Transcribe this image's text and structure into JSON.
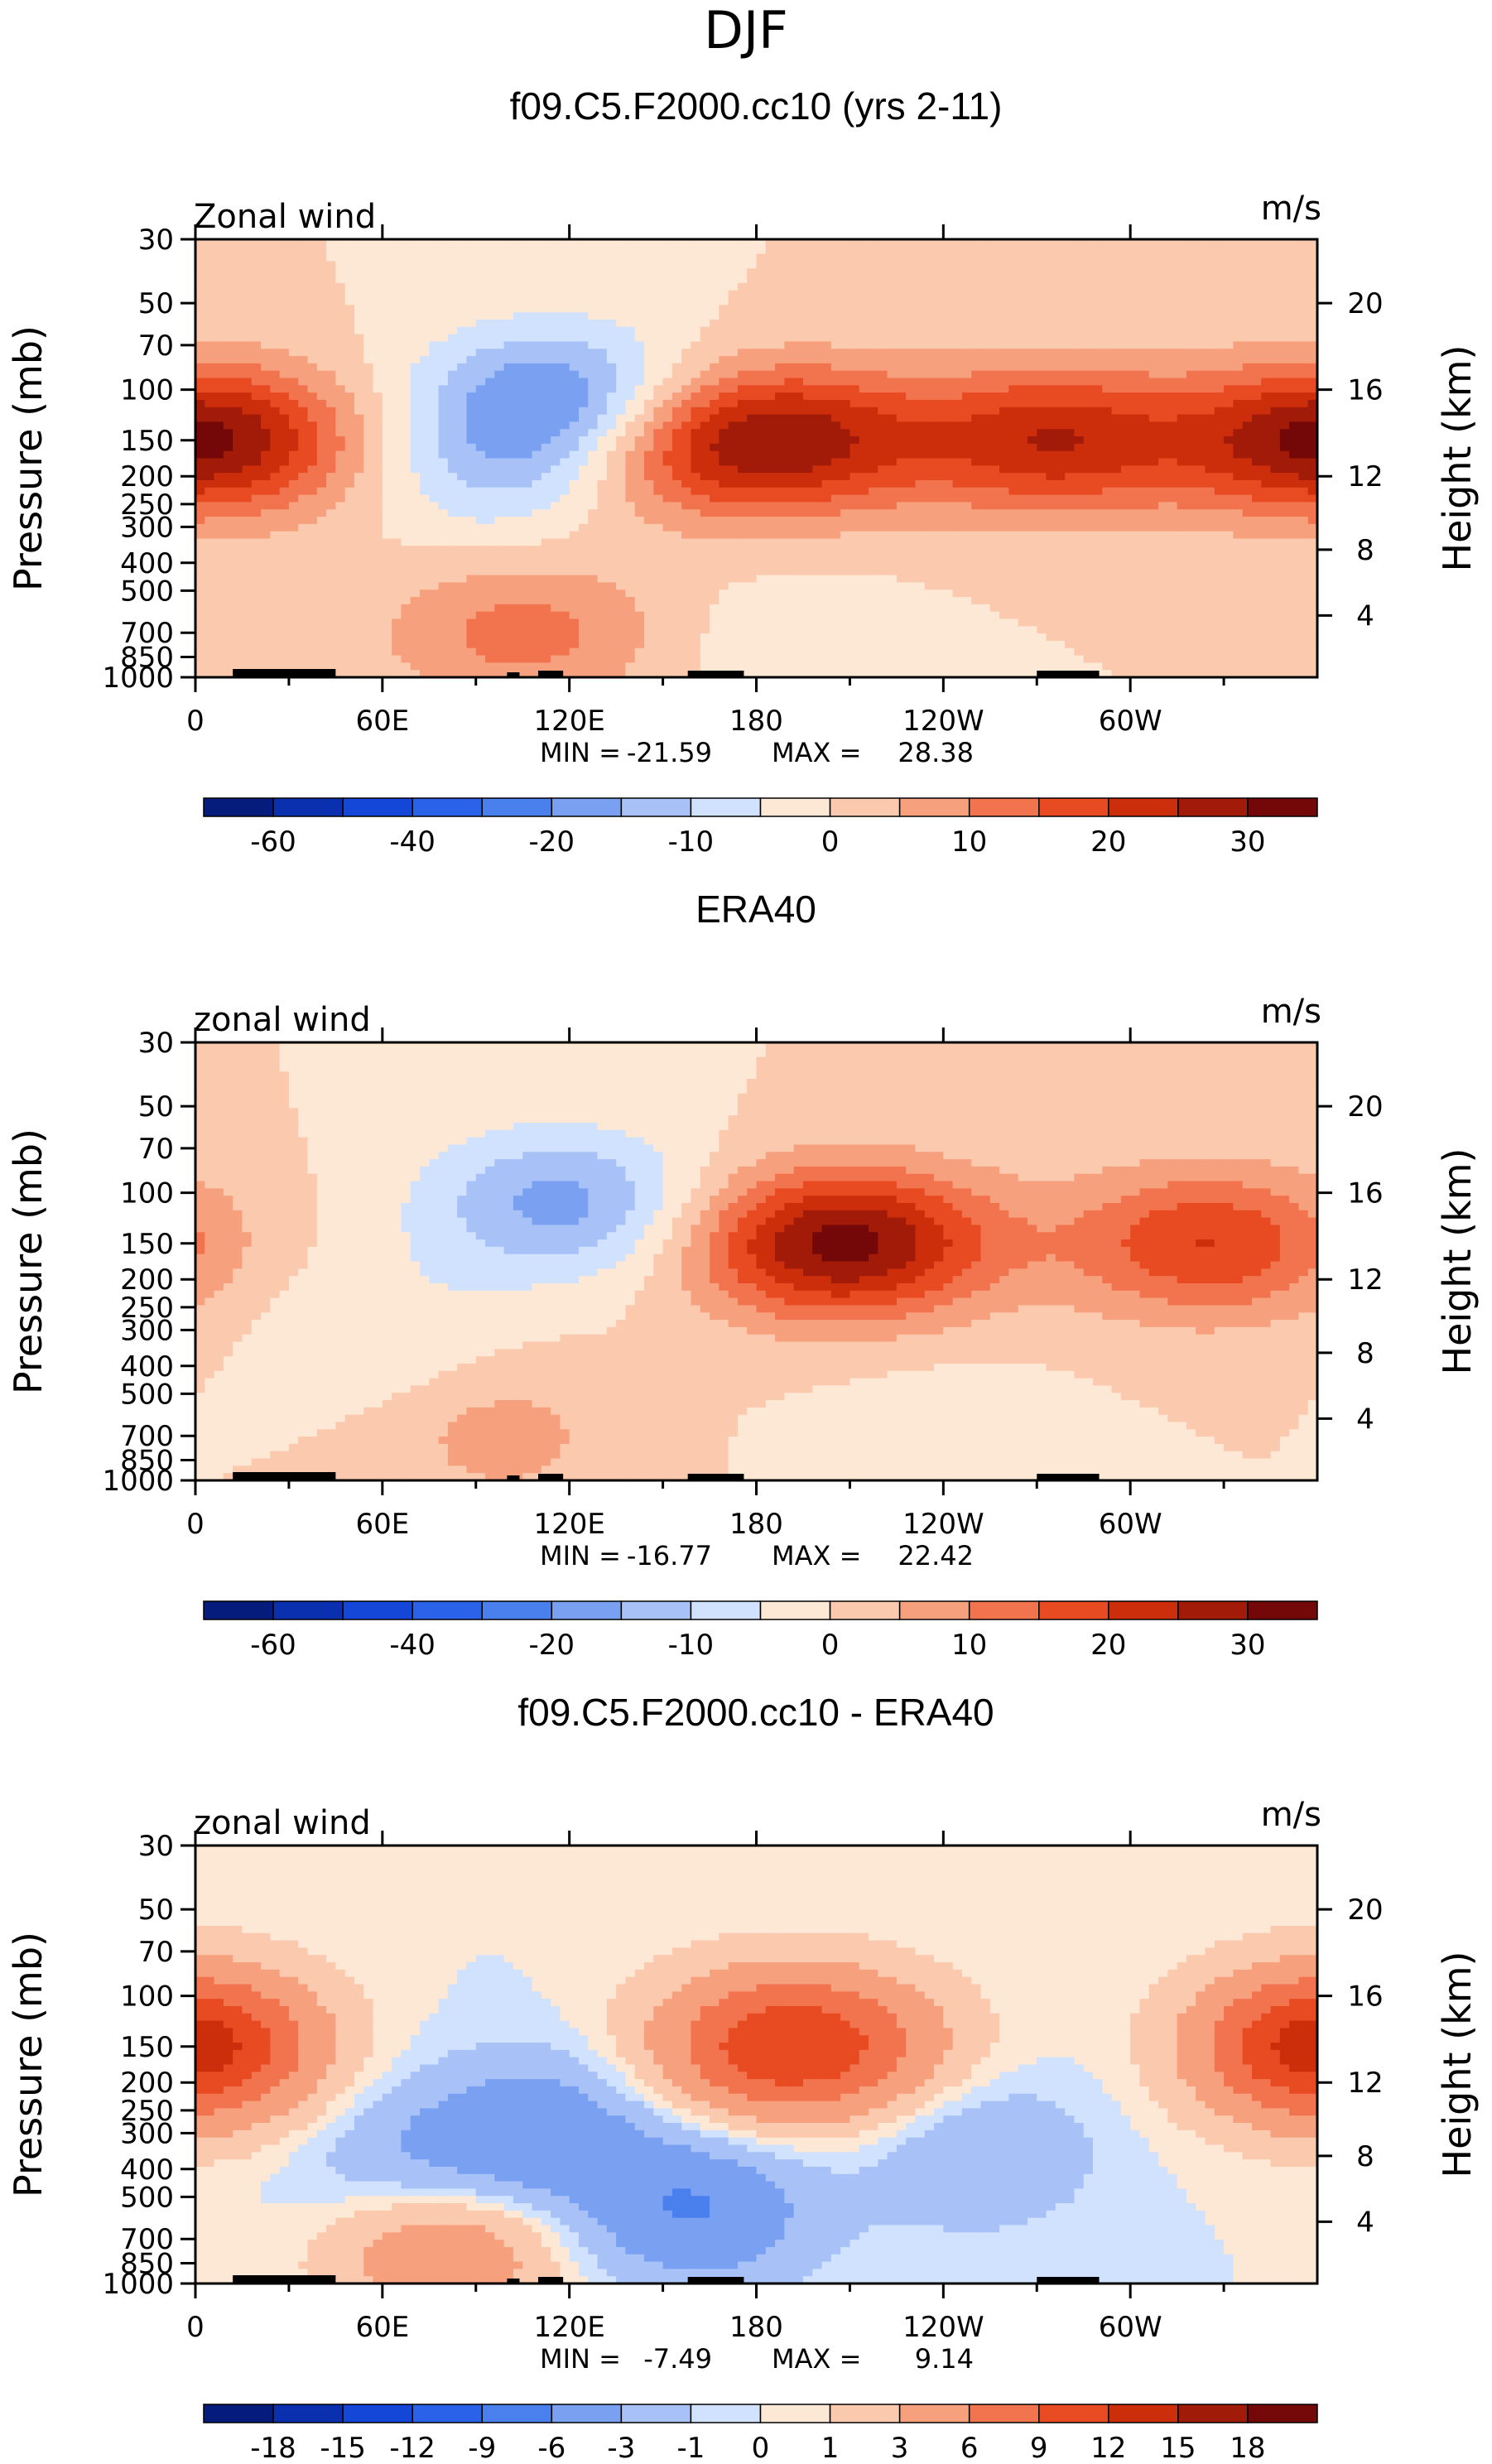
{
  "figure_title": "DJF",
  "chart_data": [
    {
      "type": "heatmap",
      "title": "f09.C5.F2000.cc10 (yrs 2-11)",
      "variable_label": "Zonal wind",
      "units": "m/s",
      "ylabel_left": "Pressure (mb)",
      "ylabel_right": "Height (km)",
      "pressure_ticks": [
        "30",
        "50",
        "70",
        "100",
        "150",
        "200",
        "250",
        "300",
        "400",
        "500",
        "700",
        "850",
        "1000"
      ],
      "height_ticks": [
        "20",
        "16",
        "12",
        "8",
        "4"
      ],
      "x_ticks": [
        "0",
        "60E",
        "120E",
        "180",
        "120W",
        "60W"
      ],
      "min_label": "MIN =",
      "min_value": "-21.59",
      "max_label": "MAX =",
      "max_value": "28.38",
      "jets": [
        {
          "lon": 170,
          "p": 150,
          "amp": 28
        },
        {
          "lon": 210,
          "p": 150,
          "amp": 10
        },
        {
          "lon": 275,
          "p": 150,
          "amp": 24
        },
        {
          "lon": 357,
          "p": 150,
          "amp": 16
        },
        {
          "lon": 8,
          "p": 150,
          "amp": 16
        },
        {
          "lon": 118,
          "p": 110,
          "amp": -22
        },
        {
          "lon": 95,
          "p": 200,
          "amp": -8
        },
        {
          "lon": 105,
          "p": 700,
          "amp": 12
        },
        {
          "lon": 190,
          "p": 800,
          "amp": -4
        }
      ],
      "colorbar": {
        "levels": [
          "-60",
          "-40",
          "-20",
          "-10",
          "0",
          "10",
          "20",
          "30"
        ],
        "colors": [
          "#061c7c",
          "#0a30b0",
          "#1446d8",
          "#2a62ea",
          "#4a80ee",
          "#7aa0f2",
          "#a8c2f8",
          "#d0e2fd",
          "#fde7d5",
          "#fbc9ad",
          "#f7a07e",
          "#f2744f",
          "#e84a22",
          "#cc2e0c",
          "#a21a08",
          "#740808"
        ]
      }
    },
    {
      "type": "heatmap",
      "title": "ERA40",
      "variable_label": "zonal wind",
      "units": "m/s",
      "ylabel_left": "Pressure (mb)",
      "ylabel_right": "Height (km)",
      "pressure_ticks": [
        "30",
        "50",
        "70",
        "100",
        "150",
        "200",
        "250",
        "300",
        "400",
        "500",
        "700",
        "850",
        "1000"
      ],
      "height_ticks": [
        "20",
        "16",
        "12",
        "8",
        "4"
      ],
      "x_ticks": [
        "0",
        "60E",
        "120E",
        "180",
        "120W",
        "60W"
      ],
      "min_label": "MIN =",
      "min_value": "-16.77",
      "max_label": "MAX =",
      "max_value": "22.42",
      "jets": [
        {
          "lon": 200,
          "p": 150,
          "amp": 22
        },
        {
          "lon": 222,
          "p": 150,
          "amp": 12
        },
        {
          "lon": 325,
          "p": 150,
          "amp": 20
        },
        {
          "lon": 118,
          "p": 110,
          "amp": -17
        },
        {
          "lon": 60,
          "p": 300,
          "amp": -5
        },
        {
          "lon": 98,
          "p": 700,
          "amp": 7
        },
        {
          "lon": 240,
          "p": 750,
          "amp": -4
        }
      ],
      "colorbar": {
        "levels": [
          "-60",
          "-40",
          "-20",
          "-10",
          "0",
          "10",
          "20",
          "30"
        ],
        "colors": [
          "#061c7c",
          "#0a30b0",
          "#1446d8",
          "#2a62ea",
          "#4a80ee",
          "#7aa0f2",
          "#a8c2f8",
          "#d0e2fd",
          "#fde7d5",
          "#fbc9ad",
          "#f7a07e",
          "#f2744f",
          "#e84a22",
          "#cc2e0c",
          "#a21a08",
          "#740808"
        ]
      }
    },
    {
      "type": "heatmap",
      "title": "f09.C5.F2000.cc10 - ERA40",
      "variable_label": "zonal wind",
      "units": "m/s",
      "ylabel_left": "Pressure (mb)",
      "ylabel_right": "Height (km)",
      "pressure_ticks": [
        "30",
        "50",
        "70",
        "100",
        "150",
        "200",
        "250",
        "300",
        "400",
        "500",
        "700",
        "850",
        "1000"
      ],
      "height_ticks": [
        "20",
        "16",
        "12",
        "8",
        "4"
      ],
      "x_ticks": [
        "0",
        "60E",
        "120E",
        "180",
        "120W",
        "60W"
      ],
      "min_label": "MIN =",
      "min_value": "-7.49",
      "max_label": "MAX =",
      "max_value": "9.14",
      "jets": [
        {
          "lon": 180,
          "p": 150,
          "amp": 8
        },
        {
          "lon": 210,
          "p": 150,
          "amp": 6
        },
        {
          "lon": 5,
          "p": 150,
          "amp": 7
        },
        {
          "lon": 355,
          "p": 150,
          "amp": 7
        },
        {
          "lon": 110,
          "p": 300,
          "amp": -5
        },
        {
          "lon": 160,
          "p": 550,
          "amp": -6
        },
        {
          "lon": 70,
          "p": 400,
          "amp": -3
        },
        {
          "lon": 80,
          "p": 750,
          "amp": 6
        },
        {
          "lon": 250,
          "p": 350,
          "amp": -3
        }
      ],
      "colorbar": {
        "levels": [
          "-18",
          "-15",
          "-12",
          "-9",
          "-6",
          "-3",
          "-1",
          "0",
          "1",
          "3",
          "6",
          "9",
          "12",
          "15",
          "18"
        ],
        "colors": [
          "#061c7c",
          "#0a30b0",
          "#1446d8",
          "#2a62ea",
          "#4a80ee",
          "#7aa0f2",
          "#a8c2f8",
          "#d0e2fd",
          "#fde7d5",
          "#fbc9ad",
          "#f7a07e",
          "#f2744f",
          "#e84a22",
          "#cc2e0c",
          "#a21a08",
          "#740808"
        ]
      }
    }
  ]
}
